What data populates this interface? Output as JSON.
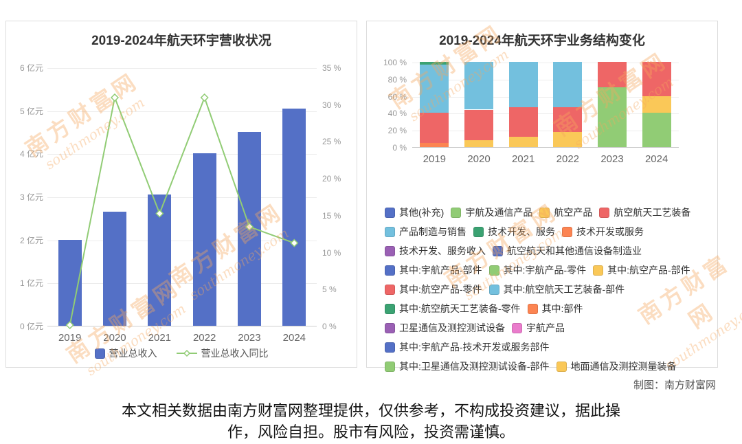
{
  "page": {
    "credit": "制图：南方财富网",
    "disclaimer": [
      "本文相关数据由南方财富网整理提供，仅供参考，不构成投资建议，据此操",
      "作，风险自担。股市有风险，投资需谨慎。"
    ],
    "watermark": {
      "text_cn": "南方财富网",
      "text_en": "southmoney.com",
      "color": "#F6A85E"
    }
  },
  "chart_data": [
    {
      "type": "bar+line",
      "title": "2019-2024年航天环宇营收状况",
      "categories": [
        "2019",
        "2020",
        "2021",
        "2022",
        "2023",
        "2024"
      ],
      "bar_series": {
        "name": "营业总收入",
        "unit": "亿元",
        "color": "#5470C6",
        "values": [
          2.0,
          2.65,
          3.05,
          4.0,
          4.5,
          5.05
        ]
      },
      "line_series": {
        "name": "营业总收入同比",
        "unit": "%",
        "color": "#91CC75",
        "values": [
          0,
          31,
          15.3,
          31,
          13.5,
          11.3
        ]
      },
      "left_axis": {
        "min": 0,
        "max": 6,
        "tick_labels": [
          "6 亿元",
          "5 亿元",
          "4 亿元",
          "3 亿元",
          "2 亿元",
          "1 亿元",
          "0 亿元"
        ]
      },
      "right_axis": {
        "min": 0,
        "max": 35,
        "tick_labels": [
          "35 %",
          "30 %",
          "25 %",
          "20 %",
          "15 %",
          "10 %",
          "5 %",
          "0 %"
        ]
      },
      "grid": true,
      "legend_position": "bottom"
    },
    {
      "type": "stacked-bar",
      "title": "2019-2024年航天环宇业务结构变化",
      "categories": [
        "2019",
        "2020",
        "2021",
        "2022",
        "2023",
        "2024"
      ],
      "unit": "%",
      "y_axis": {
        "min": 0,
        "max": 100,
        "tick_labels": [
          "100 %",
          "80 %",
          "60 %",
          "40 %",
          "20 %",
          "0 %"
        ]
      },
      "bars": [
        {
          "category": "2019",
          "segments": [
            {
              "color": "#FC8452",
              "value": 5
            },
            {
              "color": "#EE6666",
              "value": 35
            },
            {
              "color": "#73C0DE",
              "value": 57
            },
            {
              "color": "#3BA272",
              "value": 3
            }
          ]
        },
        {
          "category": "2020",
          "segments": [
            {
              "color": "#FAC858",
              "value": 8
            },
            {
              "color": "#EE6666",
              "value": 36
            },
            {
              "color": "#73C0DE",
              "value": 56
            }
          ]
        },
        {
          "category": "2021",
          "segments": [
            {
              "color": "#FAC858",
              "value": 12
            },
            {
              "color": "#EE6666",
              "value": 35
            },
            {
              "color": "#73C0DE",
              "value": 53
            }
          ]
        },
        {
          "category": "2022",
          "segments": [
            {
              "color": "#FAC858",
              "value": 18
            },
            {
              "color": "#EE6666",
              "value": 29
            },
            {
              "color": "#73C0DE",
              "value": 53
            }
          ]
        },
        {
          "category": "2023",
          "segments": [
            {
              "color": "#91CC75",
              "value": 70
            },
            {
              "color": "#EE6666",
              "value": 30
            }
          ]
        },
        {
          "category": "2024",
          "segments": [
            {
              "color": "#91CC75",
              "value": 40
            },
            {
              "color": "#FAC858",
              "value": 20
            },
            {
              "color": "#EE6666",
              "value": 40
            }
          ]
        }
      ],
      "legend": [
        {
          "label": "其他(补充)",
          "color": "#5470C6"
        },
        {
          "label": "宇航及通信产品",
          "color": "#91CC75"
        },
        {
          "label": "航空产品",
          "color": "#FAC858"
        },
        {
          "label": "航空航天工艺装备",
          "color": "#EE6666"
        },
        {
          "label": "产品制造与销售",
          "color": "#73C0DE"
        },
        {
          "label": "技术开发、服务",
          "color": "#3BA272"
        },
        {
          "label": "技术开发或服务",
          "color": "#FC8452"
        },
        {
          "label": "技术开发、服务收入",
          "color": "#9A60B4"
        },
        {
          "label": "航空航天和其他通信设备制造业",
          "color": "#5470C6"
        },
        {
          "label": "其中:宇航产品-部件",
          "color": "#5470C6"
        },
        {
          "label": "其中:宇航产品-零件",
          "color": "#91CC75"
        },
        {
          "label": "其中:航空产品-部件",
          "color": "#FAC858"
        },
        {
          "label": "其中:航空产品-零件",
          "color": "#EE6666"
        },
        {
          "label": "其中:航空航天工艺装备-部件",
          "color": "#73C0DE"
        },
        {
          "label": "其中:航空航天工艺装备-零件",
          "color": "#3BA272"
        },
        {
          "label": "其中:部件",
          "color": "#FC8452"
        },
        {
          "label": "卫星通信及测控测试设备",
          "color": "#9A60B4"
        },
        {
          "label": "宇航产品",
          "color": "#EA7CCC"
        },
        {
          "label": "其中:宇航产品-技术开发或服务部件",
          "color": "#5470C6"
        },
        {
          "label": "其中:卫星通信及测控测试设备-部件",
          "color": "#91CC75"
        },
        {
          "label": "地面通信及测控测量装备",
          "color": "#FAC858"
        }
      ],
      "grid": true,
      "legend_position": "bottom"
    }
  ]
}
